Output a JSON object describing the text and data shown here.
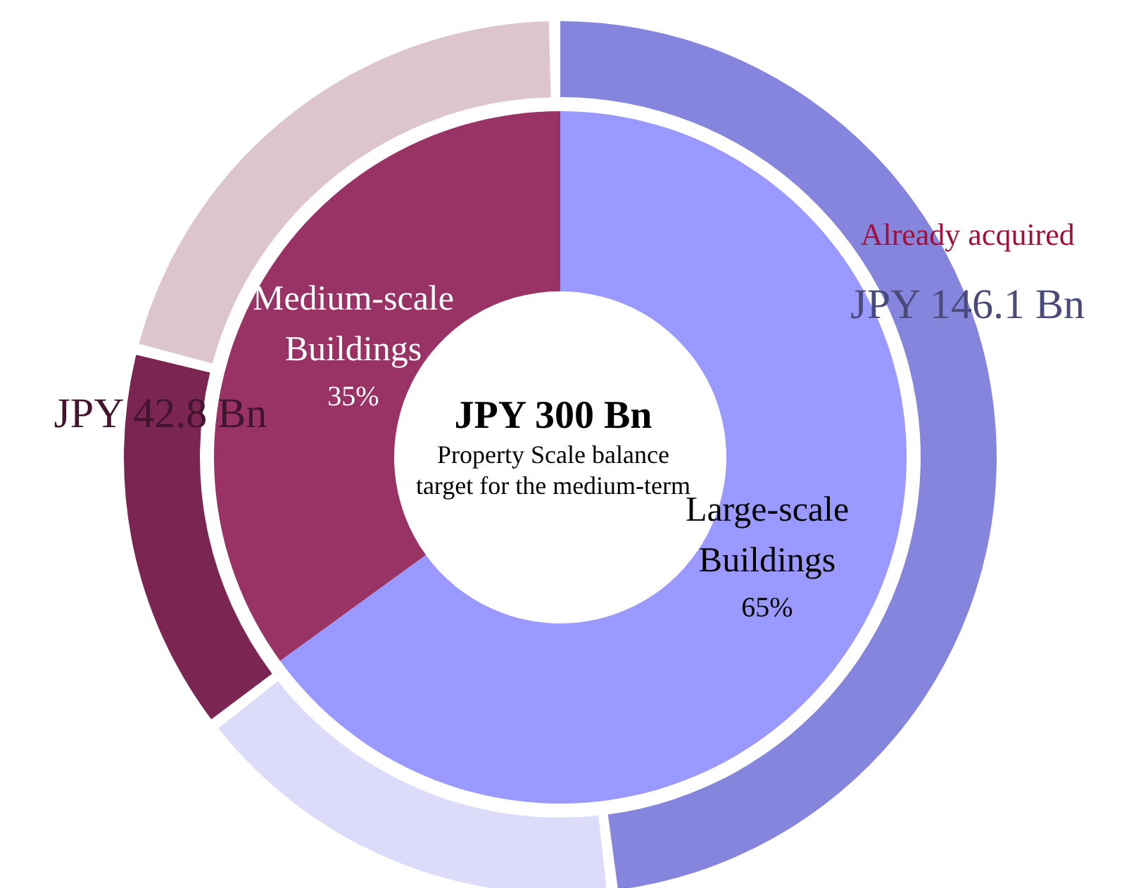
{
  "chart_data": [
    {
      "type": "donut",
      "title": "JPY 300 Bn",
      "subtitle": "Property Scale balance target for the medium-term",
      "categories": [
        "Large-scale Buildings",
        "Medium-scale Buildings"
      ],
      "values": [
        65,
        35
      ],
      "colors": [
        "#9999ff",
        "#993366"
      ],
      "value_labels": [
        "65%",
        "35%"
      ]
    },
    {
      "type": "donut",
      "categories": [
        null,
        null,
        null,
        null
      ],
      "values": [
        146.1,
        48.9,
        42.8,
        62.2
      ],
      "colors": [
        "#8585dd",
        "#dcdcfa",
        "#7a2552",
        "#dcc6cc"
      ],
      "value_labels": [
        "JPY 146.1 Bn",
        null,
        "JPY 42.8 Bn",
        null
      ],
      "annotations": [
        "Already acquired"
      ]
    }
  ]
}
